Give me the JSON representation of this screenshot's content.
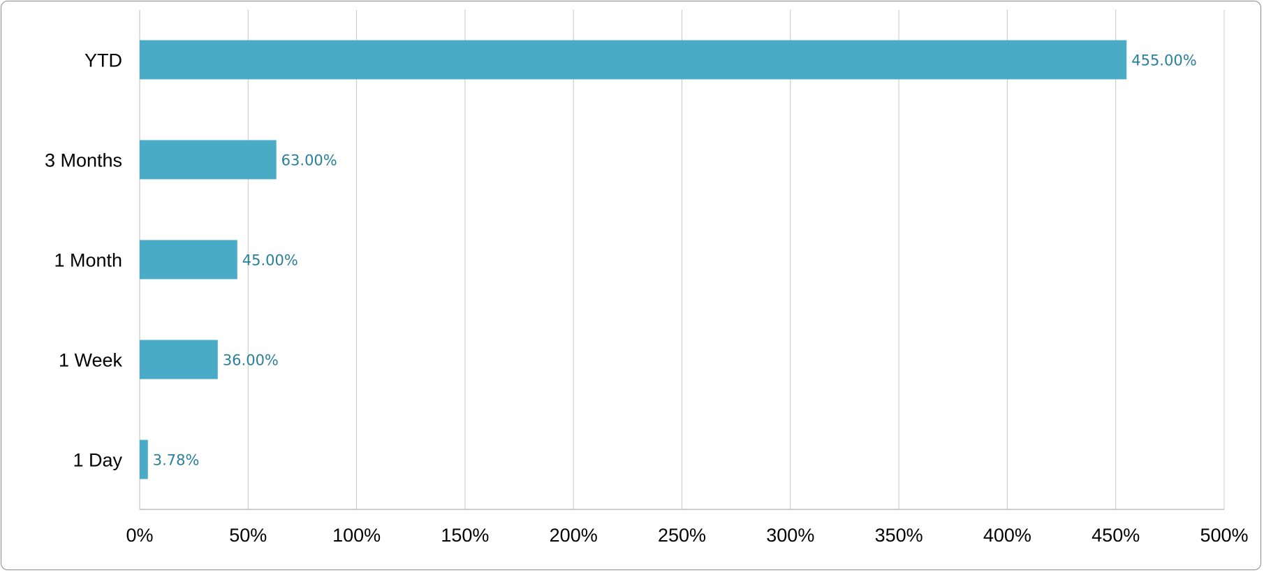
{
  "chart_data": {
    "type": "bar",
    "orientation": "horizontal",
    "categories": [
      "YTD",
      "3 Months",
      "1 Month",
      "1 Week",
      "1 Day"
    ],
    "values": [
      455.0,
      63.0,
      45.0,
      36.0,
      3.78
    ],
    "data_labels": [
      "455.00%",
      "63.00%",
      "45.00%",
      "36.00%",
      "3.78%"
    ],
    "title": "",
    "xlabel": "",
    "ylabel": "",
    "xlim": [
      0,
      500
    ],
    "x_ticks": [
      0,
      50,
      100,
      150,
      200,
      250,
      300,
      350,
      400,
      450,
      500
    ],
    "x_tick_labels": [
      "0%",
      "50%",
      "100%",
      "150%",
      "200%",
      "250%",
      "300%",
      "350%",
      "400%",
      "450%",
      "500%"
    ],
    "grid": "vertical",
    "legend": "none",
    "colors": {
      "bar": "#4aabc6",
      "data_label": "#2a7f9a",
      "grid": "#c8c8c8"
    }
  }
}
